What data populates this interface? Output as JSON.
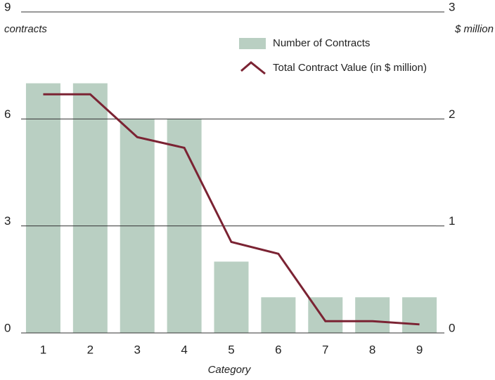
{
  "chart_data": {
    "type": "bar_line",
    "x_label": "Category",
    "y_label": "contracts",
    "y2_label": "$ million",
    "categories": [
      "1",
      "2",
      "3",
      "4",
      "5",
      "6",
      "7",
      "8",
      "9"
    ],
    "series": [
      {
        "name": "Number of Contracts",
        "type": "bar",
        "color": "#b9cfc2",
        "values": [
          7,
          7,
          6,
          6,
          2,
          1,
          1,
          1,
          1
        ]
      },
      {
        "name": "Total Contract Value (in $ million)",
        "type": "line",
        "axis": "y2",
        "color": "#7b2333",
        "values": [
          2.23,
          2.23,
          1.83,
          1.73,
          0.85,
          0.74,
          0.11,
          0.11,
          0.08
        ]
      }
    ],
    "ylim": [
      0,
      9
    ],
    "yticks": [
      0,
      3,
      6,
      9
    ],
    "y2lim": [
      0,
      3
    ],
    "y2ticks": [
      0,
      1,
      2,
      3
    ],
    "grid": true,
    "legend": "top-right"
  }
}
